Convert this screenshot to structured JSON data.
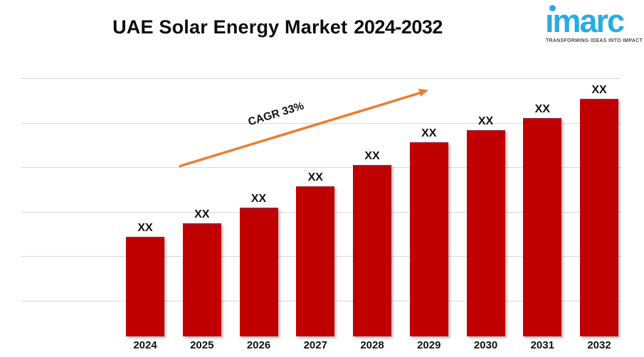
{
  "header": {
    "title_main": "UAE Solar Energy Market",
    "title_range": "2024-2032"
  },
  "logo": {
    "wordmark": "imarc",
    "tagline": "TRANSFORMING IDEAS INTO IMPACT",
    "brand_color": "#29ABE2",
    "tagline_color": "#4D4D4D"
  },
  "annotation": {
    "label": "CAGR 33%",
    "arrow_color": "#ED7D31"
  },
  "chart_data": {
    "type": "bar",
    "title": "UAE Solar Energy Market 2024-2032",
    "categories": [
      "2024",
      "2025",
      "2026",
      "2027",
      "2028",
      "2029",
      "2030",
      "2031",
      "2032"
    ],
    "value_labels": [
      "XX",
      "XX",
      "XX",
      "XX",
      "XX",
      "XX",
      "XX",
      "XX",
      "XX"
    ],
    "relative_heights": [
      138,
      157,
      179,
      209,
      239,
      271,
      288,
      305,
      332
    ],
    "bar_color": "#C00000",
    "grid": true,
    "gridline_color": "#D9D9D9",
    "xlabel": "",
    "ylabel": "",
    "legend": "none"
  }
}
